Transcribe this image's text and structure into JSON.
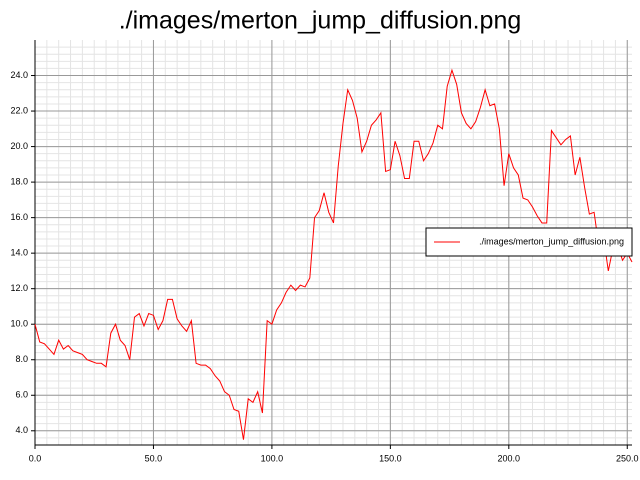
{
  "chart_data": {
    "type": "line",
    "title": "./images/merton_jump_diffusion.png",
    "x": [
      0,
      2,
      4,
      6,
      8,
      10,
      12,
      14,
      16,
      18,
      20,
      22,
      24,
      26,
      28,
      30,
      32,
      34,
      36,
      38,
      40,
      42,
      44,
      46,
      48,
      50,
      52,
      54,
      56,
      58,
      60,
      62,
      64,
      66,
      68,
      70,
      72,
      74,
      76,
      78,
      80,
      82,
      84,
      86,
      88,
      90,
      92,
      94,
      96,
      98,
      100,
      102,
      104,
      106,
      108,
      110,
      112,
      114,
      116,
      118,
      120,
      122,
      124,
      126,
      128,
      130,
      132,
      134,
      136,
      138,
      140,
      142,
      144,
      146,
      148,
      150,
      152,
      154,
      156,
      158,
      160,
      162,
      164,
      166,
      168,
      170,
      172,
      174,
      176,
      178,
      180,
      182,
      184,
      186,
      188,
      190,
      192,
      194,
      196,
      198,
      200,
      202,
      204,
      206,
      208,
      210,
      212,
      214,
      216,
      218,
      220,
      222,
      224,
      226,
      228,
      230,
      232,
      234,
      236,
      238,
      240,
      242,
      244,
      246,
      248,
      250,
      252
    ],
    "series": [
      {
        "name": "./images/merton_jump_diffusion.png",
        "color": "#ff0000",
        "values": [
          10.0,
          9.0,
          8.9,
          8.6,
          8.3,
          9.1,
          8.6,
          8.8,
          8.5,
          8.4,
          8.3,
          8.0,
          7.9,
          7.8,
          7.8,
          7.6,
          9.5,
          10.0,
          9.1,
          8.8,
          8.0,
          10.4,
          10.6,
          9.9,
          10.6,
          10.5,
          9.7,
          10.2,
          11.4,
          11.4,
          10.3,
          9.9,
          9.6,
          10.2,
          7.8,
          7.7,
          7.7,
          7.5,
          7.1,
          6.8,
          6.2,
          6.0,
          5.2,
          5.1,
          3.5,
          5.8,
          5.6,
          6.2,
          5.0,
          10.2,
          10.0,
          10.8,
          11.2,
          11.8,
          12.2,
          11.9,
          12.2,
          12.1,
          12.6,
          16.0,
          16.4,
          17.4,
          16.3,
          15.7,
          18.9,
          21.3,
          23.2,
          22.6,
          21.6,
          19.7,
          20.3,
          21.2,
          21.5,
          21.9,
          18.6,
          18.7,
          20.3,
          19.5,
          18.2,
          18.2,
          20.3,
          20.3,
          19.2,
          19.6,
          20.2,
          21.2,
          21.0,
          23.4,
          24.3,
          23.5,
          21.9,
          21.3,
          21.0,
          21.4,
          22.2,
          23.2,
          22.3,
          22.4,
          21.0,
          17.8,
          19.6,
          18.8,
          18.4,
          17.1,
          17.0,
          16.6,
          16.1,
          15.7,
          15.7,
          20.9,
          20.5,
          20.1,
          20.4,
          20.6,
          18.4,
          19.4,
          17.7,
          16.2,
          16.3,
          14.4,
          14.9,
          13.0,
          14.3,
          14.4,
          13.6,
          14.0,
          13.5
        ]
      }
    ],
    "xlim": [
      0,
      252
    ],
    "ylim": [
      3.2,
      26
    ],
    "xticks": [
      {
        "value": 0,
        "label": "0.0"
      },
      {
        "value": 50,
        "label": "50.0"
      },
      {
        "value": 100,
        "label": "100.0"
      },
      {
        "value": 150,
        "label": "150.0"
      },
      {
        "value": 200,
        "label": "200.0"
      },
      {
        "value": 250,
        "label": "250.0"
      }
    ],
    "yticks": [
      {
        "value": 4,
        "label": "4.0"
      },
      {
        "value": 6,
        "label": "6.0"
      },
      {
        "value": 8,
        "label": "8.0"
      },
      {
        "value": 10,
        "label": "10.0"
      },
      {
        "value": 12,
        "label": "12.0"
      },
      {
        "value": 14,
        "label": "14.0"
      },
      {
        "value": 16,
        "label": "16.0"
      },
      {
        "value": 18,
        "label": "18.0"
      },
      {
        "value": 20,
        "label": "20.0"
      },
      {
        "value": 22,
        "label": "22.0"
      },
      {
        "value": 24,
        "label": "24.0"
      }
    ],
    "grid": true,
    "legend": "right"
  }
}
